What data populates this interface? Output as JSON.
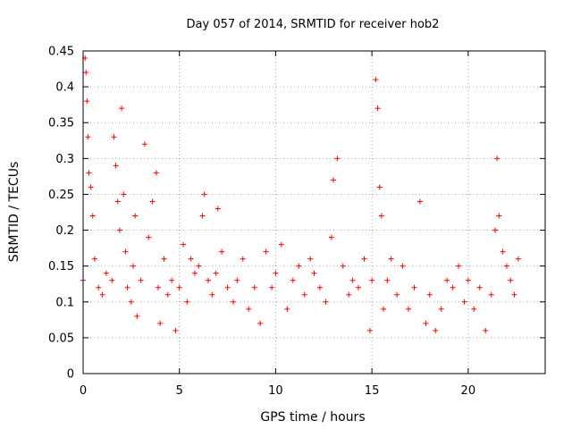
{
  "chart_data": {
    "type": "scatter",
    "title": "Day 057 of 2014, SRMTID for receiver hob2",
    "xlabel": "GPS time / hours",
    "ylabel": "SRMTID / TECUs",
    "xlim": [
      0,
      24
    ],
    "ylim": [
      0,
      0.45
    ],
    "xticks": [
      "0",
      "5",
      "10",
      "15",
      "20"
    ],
    "yticks": [
      "0",
      "0.05",
      "0.1",
      "0.15",
      "0.2",
      "0.25",
      "0.3",
      "0.35",
      "0.4",
      "0.45"
    ],
    "grid": true,
    "marker": "+",
    "color": "#ff0000",
    "series": [
      {
        "name": "hob2",
        "x": [
          0.0,
          0.1,
          0.15,
          0.2,
          0.25,
          0.3,
          0.4,
          0.5,
          0.6,
          0.8,
          1.0,
          1.2,
          1.5,
          1.6,
          1.7,
          1.8,
          1.9,
          2.0,
          2.1,
          2.2,
          2.3,
          2.5,
          2.6,
          2.7,
          2.8,
          3.0,
          3.2,
          3.4,
          3.6,
          3.8,
          3.9,
          4.0,
          4.2,
          4.4,
          4.6,
          4.8,
          5.0,
          5.2,
          5.4,
          5.6,
          5.8,
          6.0,
          6.2,
          6.3,
          6.5,
          6.7,
          6.9,
          7.0,
          7.2,
          7.5,
          7.8,
          8.0,
          8.3,
          8.6,
          8.9,
          9.2,
          9.5,
          9.8,
          10.0,
          10.3,
          10.6,
          10.9,
          11.2,
          11.5,
          11.8,
          12.0,
          12.3,
          12.6,
          12.9,
          13.0,
          13.2,
          13.5,
          13.8,
          14.0,
          14.3,
          14.6,
          14.9,
          15.0,
          15.2,
          15.3,
          15.4,
          15.5,
          15.6,
          15.8,
          16.0,
          16.3,
          16.6,
          16.9,
          17.2,
          17.5,
          17.8,
          18.0,
          18.3,
          18.6,
          18.9,
          19.2,
          19.5,
          19.8,
          20.0,
          20.3,
          20.6,
          20.9,
          21.2,
          21.4,
          21.5,
          21.6,
          21.8,
          22.0,
          22.2,
          22.4,
          22.6
        ],
        "y": [
          0.13,
          0.44,
          0.42,
          0.38,
          0.33,
          0.28,
          0.26,
          0.22,
          0.16,
          0.12,
          0.11,
          0.14,
          0.13,
          0.33,
          0.29,
          0.24,
          0.2,
          0.37,
          0.25,
          0.17,
          0.12,
          0.1,
          0.15,
          0.22,
          0.08,
          0.13,
          0.32,
          0.19,
          0.24,
          0.28,
          0.12,
          0.07,
          0.16,
          0.11,
          0.13,
          0.06,
          0.12,
          0.18,
          0.1,
          0.16,
          0.14,
          0.15,
          0.22,
          0.25,
          0.13,
          0.11,
          0.14,
          0.23,
          0.17,
          0.12,
          0.1,
          0.13,
          0.16,
          0.09,
          0.12,
          0.07,
          0.17,
          0.12,
          0.14,
          0.18,
          0.09,
          0.13,
          0.15,
          0.11,
          0.16,
          0.14,
          0.12,
          0.1,
          0.19,
          0.27,
          0.3,
          0.15,
          0.11,
          0.13,
          0.12,
          0.16,
          0.06,
          0.13,
          0.41,
          0.37,
          0.26,
          0.22,
          0.09,
          0.13,
          0.16,
          0.11,
          0.15,
          0.09,
          0.12,
          0.24,
          0.07,
          0.11,
          0.06,
          0.09,
          0.13,
          0.12,
          0.15,
          0.1,
          0.13,
          0.09,
          0.12,
          0.06,
          0.11,
          0.2,
          0.3,
          0.22,
          0.17,
          0.15,
          0.13,
          0.11,
          0.16
        ]
      }
    ]
  }
}
